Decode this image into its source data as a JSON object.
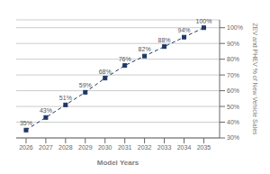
{
  "chart_data": {
    "type": "line",
    "x": [
      2026,
      2027,
      2028,
      2029,
      2030,
      2031,
      2032,
      2033,
      2034,
      2035
    ],
    "values": [
      35,
      43,
      51,
      59,
      68,
      76,
      82,
      88,
      94,
      100
    ],
    "value_labels": [
      "35%",
      "43%",
      "51%",
      "59%",
      "68%",
      "76%",
      "82%",
      "88%",
      "94%",
      "100%"
    ],
    "data_labels": true,
    "color": "#1f3864",
    "marker": "square",
    "line_style": "dashed",
    "xlabel": "Model Years",
    "ylabel": "ZEV and PHEV % of New Vehicle Sales",
    "xlim": [
      2025.5,
      2035.8
    ],
    "xticks": [
      2026,
      2027,
      2028,
      2029,
      2030,
      2031,
      2032,
      2033,
      2034,
      2035
    ],
    "ylim": [
      30,
      105
    ],
    "yticks": [
      {
        "value": 30,
        "label": "30%"
      },
      {
        "value": 40,
        "label": "40%"
      },
      {
        "value": 50,
        "label": "50%"
      },
      {
        "value": 60,
        "label": "60%"
      },
      {
        "value": 70,
        "label": "70%"
      },
      {
        "value": 80,
        "label": "80%"
      },
      {
        "value": 90,
        "label": "90%"
      },
      {
        "value": 100,
        "label": "100%"
      }
    ],
    "grid": true
  }
}
